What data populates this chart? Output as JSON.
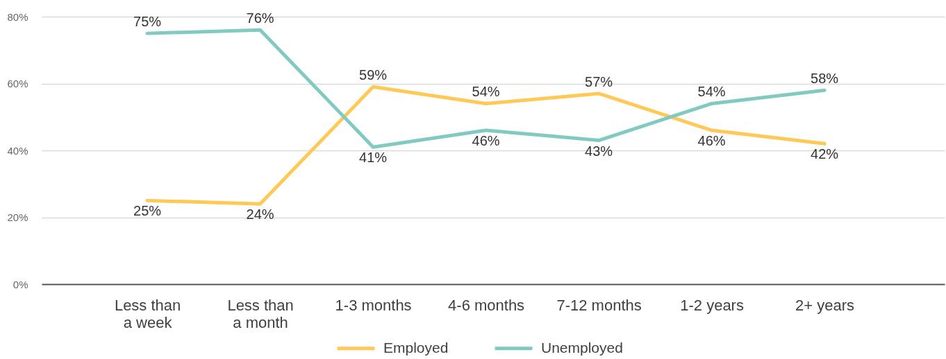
{
  "chart_data": {
    "type": "line",
    "categories": [
      "Less than a week",
      "Less than a month",
      "1-3 months",
      "4-6 months",
      "7-12 months",
      "1-2 years",
      "2+ years"
    ],
    "series": [
      {
        "name": "Employed",
        "color": "#ffc857",
        "values": [
          25,
          24,
          59,
          54,
          57,
          46,
          42
        ],
        "value_labels": [
          "25%",
          "24%",
          "59%",
          "54%",
          "57%",
          "46%",
          "42%"
        ]
      },
      {
        "name": "Unemployed",
        "color": "#80cac2",
        "values": [
          75,
          76,
          41,
          46,
          43,
          54,
          58
        ],
        "value_labels": [
          "75%",
          "76%",
          "41%",
          "46%",
          "43%",
          "54%",
          "58%"
        ]
      }
    ],
    "ylim": [
      0,
      80
    ],
    "yticks": [
      {
        "value": 0,
        "label": "0%"
      },
      {
        "value": 20,
        "label": "20%"
      },
      {
        "value": 40,
        "label": "40%"
      },
      {
        "value": 60,
        "label": "60%"
      },
      {
        "value": 80,
        "label": "80%"
      }
    ],
    "grid": "y",
    "legend": "bottom",
    "line_style": "solid"
  }
}
